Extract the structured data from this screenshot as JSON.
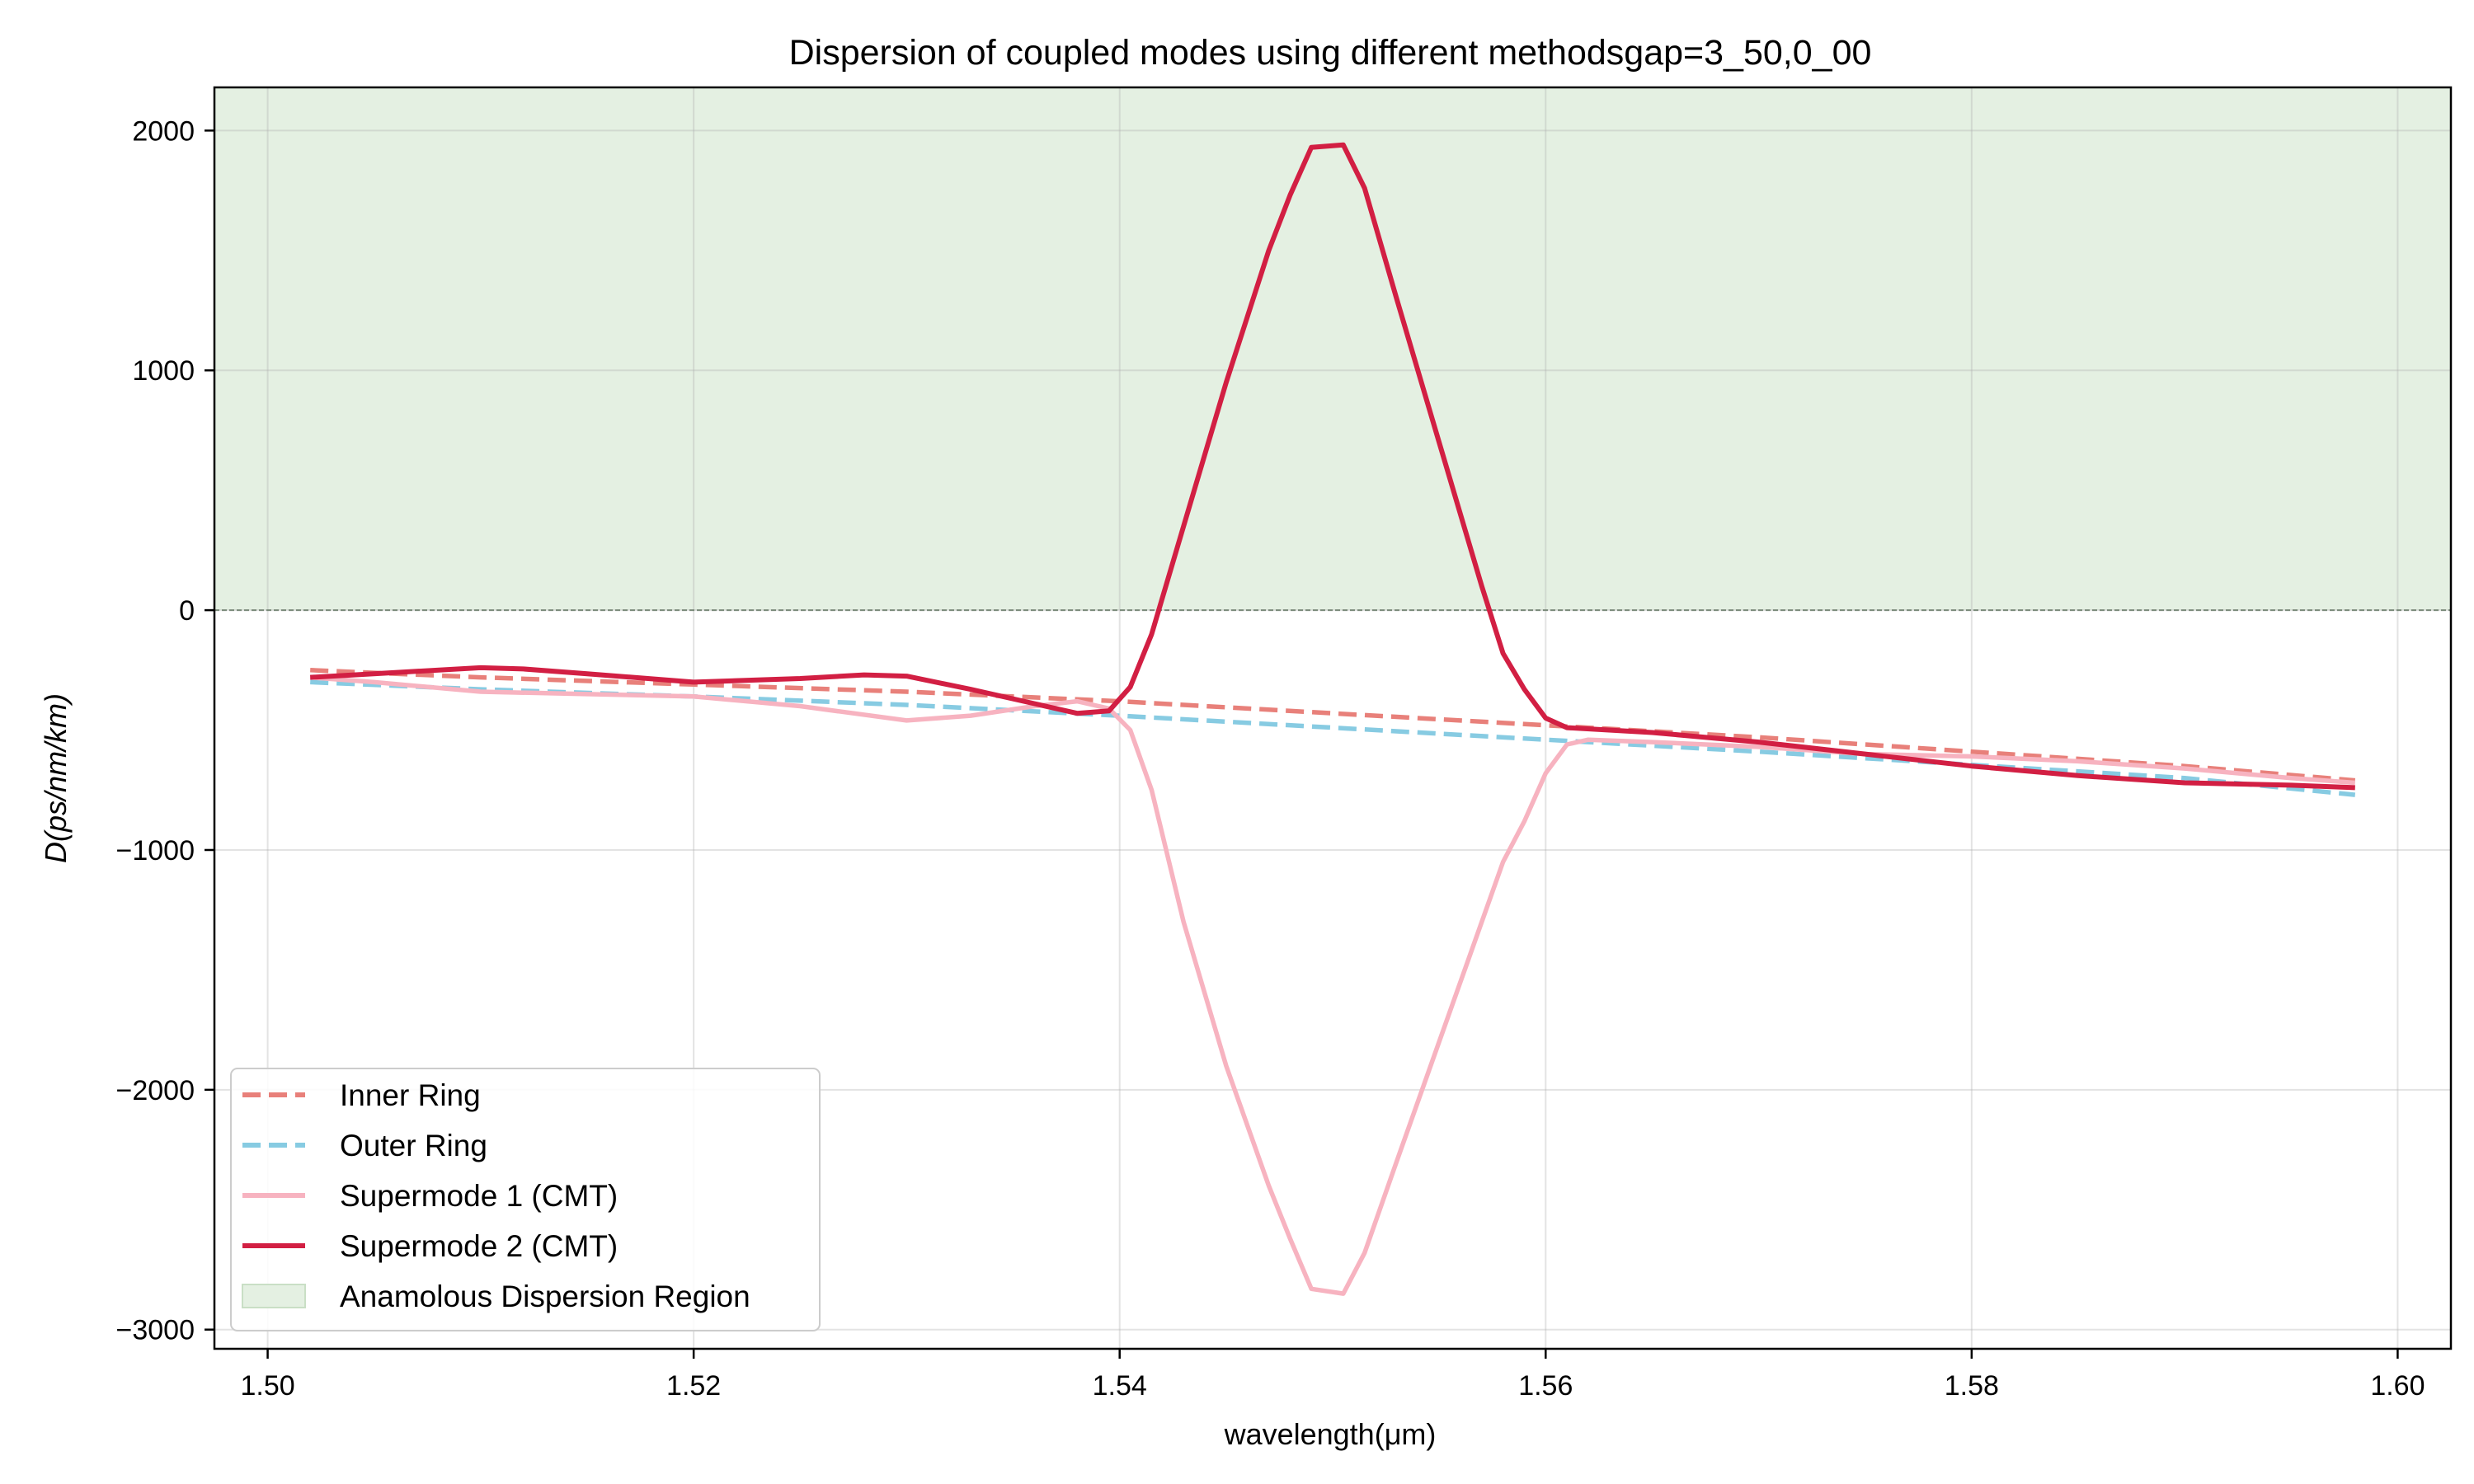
{
  "chart_data": {
    "type": "line",
    "title": "Dispersion of coupled modes using different methodsgap=3_50,0_00",
    "xlabel": "wavelength(μm)",
    "ylabel": "D(ps/nm/km)",
    "xlim": [
      1.4975,
      1.6025
    ],
    "ylim": [
      -3080,
      2180
    ],
    "xticks": [
      1.5,
      1.52,
      1.54,
      1.56,
      1.58,
      1.6
    ],
    "xtick_labels": [
      "1.50",
      "1.52",
      "1.54",
      "1.56",
      "1.58",
      "1.60"
    ],
    "yticks": [
      2000,
      1000,
      0,
      -1000,
      -2000,
      -3000
    ],
    "ytick_labels": [
      "2000",
      "1000",
      "0",
      "−1000",
      "−2000",
      "−3000"
    ],
    "grid": true,
    "legend_position": "lower-left",
    "shaded_region": {
      "label": "Anamolous Dispersion Region",
      "y_from": 0,
      "color": "#e4f0e2",
      "edge": "#c9dfc5"
    },
    "zero_line_color": "#7a8a7a",
    "series": [
      {
        "name": "Inner Ring",
        "style": "dashed",
        "color": "#e8807a",
        "x": [
          1.502,
          1.51,
          1.52,
          1.53,
          1.54,
          1.55,
          1.56,
          1.57,
          1.58,
          1.59,
          1.598
        ],
        "y": [
          -250,
          -280,
          -310,
          -340,
          -380,
          -430,
          -480,
          -530,
          -590,
          -650,
          -710
        ]
      },
      {
        "name": "Outer Ring",
        "style": "dashed",
        "color": "#87cbe2",
        "x": [
          1.502,
          1.51,
          1.52,
          1.53,
          1.54,
          1.55,
          1.56,
          1.57,
          1.58,
          1.59,
          1.598
        ],
        "y": [
          -300,
          -330,
          -360,
          -395,
          -440,
          -490,
          -540,
          -590,
          -645,
          -700,
          -770
        ]
      },
      {
        "name": "Supermode 1 (CMT)",
        "style": "solid",
        "color": "#f7b3c0",
        "x": [
          1.502,
          1.505,
          1.51,
          1.515,
          1.52,
          1.525,
          1.53,
          1.533,
          1.536,
          1.538,
          1.5395,
          1.5405,
          1.5415,
          1.543,
          1.545,
          1.547,
          1.548,
          1.549,
          1.5505,
          1.5515,
          1.553,
          1.555,
          1.557,
          1.558,
          1.559,
          1.56,
          1.561,
          1.562,
          1.565,
          1.57,
          1.575,
          1.58,
          1.585,
          1.59,
          1.595,
          1.598
        ],
        "y": [
          -280,
          -300,
          -340,
          -350,
          -360,
          -400,
          -460,
          -440,
          -400,
          -380,
          -410,
          -500,
          -750,
          -1300,
          -1900,
          -2400,
          -2620,
          -2830,
          -2850,
          -2680,
          -2300,
          -1800,
          -1300,
          -1050,
          -880,
          -680,
          -560,
          -540,
          -550,
          -570,
          -600,
          -610,
          -630,
          -660,
          -700,
          -720
        ]
      },
      {
        "name": "Supermode 2 (CMT)",
        "style": "solid",
        "color": "#d21f43",
        "x": [
          1.502,
          1.506,
          1.51,
          1.512,
          1.515,
          1.52,
          1.525,
          1.528,
          1.53,
          1.533,
          1.536,
          1.538,
          1.5395,
          1.5405,
          1.5415,
          1.543,
          1.545,
          1.547,
          1.548,
          1.549,
          1.5505,
          1.5515,
          1.553,
          1.555,
          1.557,
          1.558,
          1.559,
          1.56,
          1.561,
          1.565,
          1.57,
          1.575,
          1.58,
          1.585,
          1.59,
          1.595,
          1.598
        ],
        "y": [
          -280,
          -260,
          -240,
          -245,
          -265,
          -300,
          -285,
          -270,
          -275,
          -330,
          -390,
          -430,
          -420,
          -320,
          -100,
          350,
          950,
          1500,
          1730,
          1930,
          1940,
          1760,
          1300,
          700,
          100,
          -180,
          -330,
          -450,
          -490,
          -510,
          -550,
          -600,
          -650,
          -690,
          -720,
          -730,
          -740
        ]
      }
    ]
  }
}
